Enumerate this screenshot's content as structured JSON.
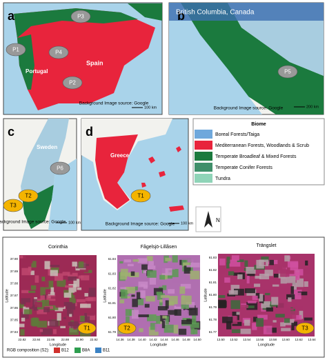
{
  "maps": [
    {
      "letter": "a",
      "labels": [
        "Portugal",
        "Spain"
      ],
      "sites": [
        "P1",
        "P3",
        "P4",
        "P2"
      ],
      "credit": "Background Image source: Google",
      "scale": "100 km"
    },
    {
      "letter": "b",
      "labels": [
        "British Columbia, Canada"
      ],
      "sites": [
        "P5"
      ],
      "credit": "Background Image source: Google",
      "scale": "200 km"
    },
    {
      "letter": "c",
      "labels": [
        "Sweden"
      ],
      "sites": [
        "T3",
        "T2",
        "P6"
      ],
      "credit": "Background Image source: Google",
      "scale": "100 km"
    },
    {
      "letter": "d",
      "labels": [
        "Greece"
      ],
      "sites": [
        "T1"
      ],
      "credit": "Background Image source: Google",
      "scale": "100 km"
    }
  ],
  "biome_legend": {
    "title": "Biome",
    "items": [
      {
        "label": "Boreal Forests/Taiga",
        "color": "#6fa8dc"
      },
      {
        "label": "Mediterranean Forests, Woodlands & Scrub",
        "color": "#e8243c"
      },
      {
        "label": "Temperate Broadleaf & Mixed Forests",
        "color": "#1b7a3e"
      },
      {
        "label": "Temperate Conifer Forests",
        "color": "#3f8f6a"
      },
      {
        "label": "Tundra",
        "color": "#8fd4b8"
      }
    ]
  },
  "north": "N",
  "satellite": {
    "panels": [
      {
        "title": "Corinthia",
        "x_label": "Longitude",
        "y_label": "Latitude",
        "xticks": [
          "22.82",
          "22.84",
          "22.86",
          "22.88",
          "22.90",
          "22.92"
        ],
        "yticks": [
          "37.90",
          "37.89",
          "37.88",
          "37.87",
          "37.86",
          "37.85",
          "37.84"
        ],
        "site": "T1"
      },
      {
        "title": "Fågelsjö-Lillåsen",
        "x_label": "Longitude",
        "y_label": "Latitude",
        "xticks": [
          "14.36",
          "14.38",
          "14.40",
          "14.42",
          "14.44",
          "14.46",
          "14.48",
          "14.50"
        ],
        "yticks": [
          "61.84",
          "61.83",
          "61.82",
          "61.81",
          "61.80",
          "61.79"
        ],
        "site": "T2"
      },
      {
        "title": "Trängslet",
        "x_label": "Longitude",
        "y_label": "Latitude",
        "xticks": [
          "13.50",
          "13.52",
          "13.54",
          "13.56",
          "13.58",
          "13.60",
          "13.62",
          "13.64"
        ],
        "yticks": [
          "61.83",
          "61.82",
          "61.81",
          "61.80",
          "61.79",
          "61.78",
          "61.77"
        ],
        "site": "T3"
      }
    ],
    "composition": {
      "label": "RGB composition (S2):",
      "bands": [
        {
          "name": "B12",
          "color": "#d0312d"
        },
        {
          "name": "B8A",
          "color": "#2e9e4f"
        },
        {
          "name": "B11",
          "color": "#3b82c4"
        }
      ]
    }
  }
}
